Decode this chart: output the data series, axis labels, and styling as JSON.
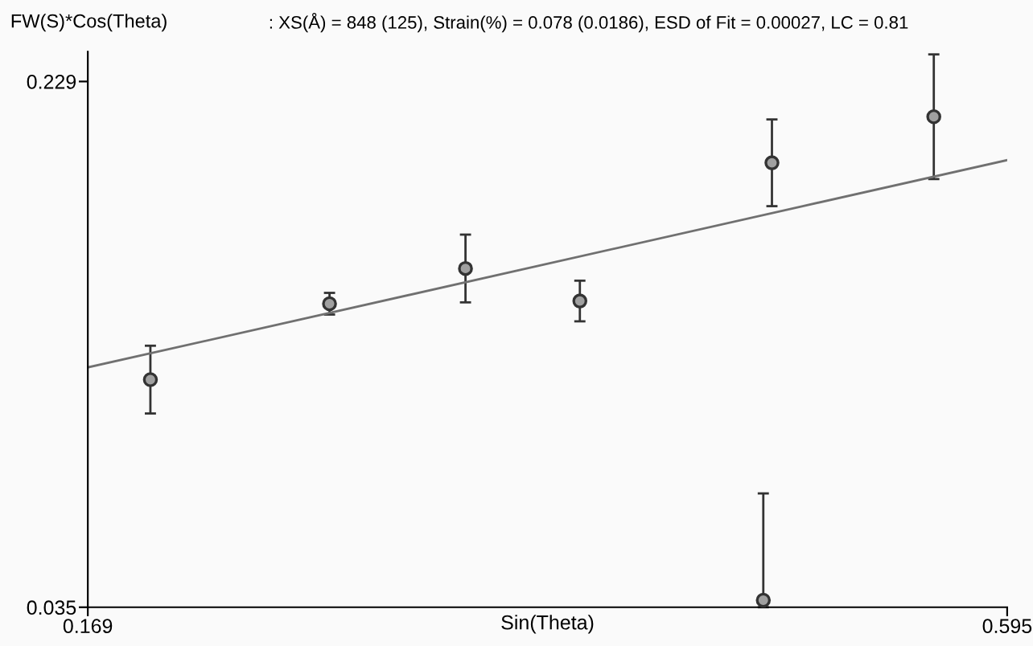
{
  "chart_data": {
    "type": "scatter",
    "title": ": XS(Å) = 848 (125), Strain(%) = 0.078 (0.0186), ESD of Fit = 0.00027, LC = 0.81",
    "xlabel": "Sin(Theta)",
    "ylabel": "FW(S)*Cos(Theta)",
    "xlim": [
      0.169,
      0.595
    ],
    "ylim": [
      0.035,
      0.24
    ],
    "xticks": [
      0.169,
      0.595
    ],
    "yticks": [
      0.035,
      0.229
    ],
    "grid": false,
    "marker": "circle",
    "series": [
      {
        "color": "#333333",
        "x": [
          0.198,
          0.281,
          0.344,
          0.397,
          0.486,
          0.561,
          0.482
        ],
        "values": [
          0.119,
          0.147,
          0.16,
          0.148,
          0.199,
          0.216,
          0.0376
        ],
        "errors": [
          0.0125,
          0.004,
          0.0125,
          0.0075,
          0.016,
          [
            0.193,
            0.239
          ],
          [
            0.035,
            0.077
          ]
        ]
      },
      {
        "type": "line",
        "color": "#707070",
        "x": [
          0.169,
          0.595
        ],
        "values": [
          0.1235,
          0.2
        ],
        "marker": "none"
      }
    ]
  }
}
